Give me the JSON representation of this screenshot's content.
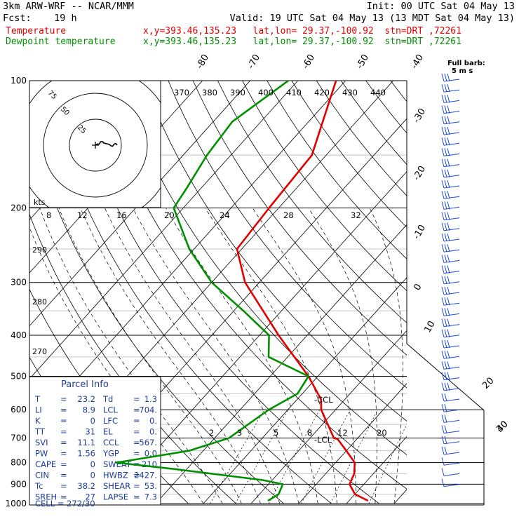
{
  "header": {
    "model": "3km ARW-WRF -- NCAR/MMM",
    "init": "Init: 00 UTC Sat 04 May 13",
    "fcst": "Fcst:    19 h",
    "valid": "Valid: 19 UTC Sat 04 May 13 (13 MDT Sat 04 May 13)"
  },
  "legend": {
    "temp_label": "Temperature",
    "temp_info": "x,y=393.46,135.23   lat,lon= 29.37,-100.92  stn=DRT ,72261",
    "dew_label": "Dewpoint temperature",
    "dew_info": "x,y=393.46,135.23   lat,lon= 29.37,-100.92  stn=DRT ,72261"
  },
  "barb_legend": {
    "title": "Full barb:",
    "value": "5 m s"
  },
  "hodograph": {
    "units": "kts",
    "ring_labels": [
      "75",
      "50",
      "25"
    ]
  },
  "parcel_info": {
    "title": "Parcel Info",
    "rows": [
      {
        "k1": "T",
        "v1": "23.2",
        "k2": "Td",
        "v2": "1.3"
      },
      {
        "k1": "LI",
        "v1": "8.9",
        "k2": "LCL",
        "v2": "704."
      },
      {
        "k1": "K",
        "v1": "0",
        "k2": "LFC",
        "v2": "0."
      },
      {
        "k1": "TT",
        "v1": "31",
        "k2": "EL",
        "v2": "0."
      },
      {
        "k1": "SVI",
        "v1": "11.1",
        "k2": "CCL",
        "v2": "567."
      },
      {
        "k1": "PW",
        "v1": "1.56",
        "k2": "YGP",
        "v2": "0.0"
      },
      {
        "k1": "CAPE",
        "v1": "0",
        "k2": "SWEAT",
        "v2": "210"
      },
      {
        "k1": "CIN",
        "v1": "0",
        "k2": "HWBZ",
        "v2": "2427."
      },
      {
        "k1": "Tc",
        "v1": "38.2",
        "k2": "SHEAR",
        "v2": "53."
      },
      {
        "k1": "SREH",
        "v1": "27",
        "k2": "LAPSE",
        "v2": "7.3"
      }
    ],
    "cell": "CELL = 272/30"
  },
  "chart_data": {
    "type": "line",
    "title": "",
    "y_axis": "pressure (hPa), log scale",
    "ylim": [
      1000,
      100
    ],
    "pressure_labels": [
      "100",
      "200",
      "300",
      "400",
      "500",
      "600",
      "700",
      "800",
      "900",
      "1000"
    ],
    "isotherm_labels": [
      "-80",
      "-70",
      "-60",
      "-50",
      "-40",
      "-30",
      "-20",
      "-10",
      "0",
      "10",
      "20",
      "30",
      "40"
    ],
    "theta_labels": [
      "370",
      "380",
      "390",
      "400",
      "410",
      "420",
      "430",
      "440"
    ],
    "dry_adiabat_labels": [
      "290",
      "280",
      "270"
    ],
    "wind_speed_labels": [
      "8",
      "12",
      "16",
      "20",
      "24",
      "28",
      "32"
    ],
    "mixing_ratio_labels": [
      "2",
      "3",
      "5",
      "8",
      "12",
      "20"
    ],
    "markers": [
      "-CCL",
      "-LCL"
    ],
    "series": [
      {
        "name": "Temperature",
        "color": "#e00000",
        "pressure": [
          100,
          150,
          200,
          250,
          300,
          400,
          500,
          567,
          600,
          700,
          704,
          750,
          800,
          850,
          900,
          950,
          985
        ],
        "temp": [
          -62,
          -53,
          -52,
          -51,
          -43,
          -26,
          -12,
          -5,
          -3,
          5,
          6,
          10,
          14,
          16,
          17,
          20,
          24
        ]
      },
      {
        "name": "Dewpoint temperature",
        "color": "#009000",
        "pressure": [
          100,
          125,
          150,
          180,
          200,
          250,
          300,
          350,
          400,
          450,
          500,
          550,
          600,
          700,
          750,
          800,
          830,
          880,
          900,
          950,
          985
        ],
        "temp": [
          -72,
          -76,
          -75,
          -73,
          -72,
          -61,
          -50,
          -38,
          -28,
          -24,
          -12,
          -11,
          -14,
          -17,
          -23,
          -36,
          -22,
          -2,
          3,
          4,
          3
        ]
      }
    ],
    "hodograph_trace_kts": [
      [
        0,
        0
      ],
      [
        3,
        2
      ],
      [
        7,
        2
      ],
      [
        9,
        6
      ],
      [
        13,
        6
      ],
      [
        14,
        4
      ],
      [
        18,
        3
      ],
      [
        22,
        2
      ],
      [
        25,
        1
      ],
      [
        27,
        -1
      ],
      [
        30,
        -2
      ],
      [
        33,
        2
      ],
      [
        35,
        3
      ],
      [
        37,
        2
      ],
      [
        38,
        0
      ]
    ]
  }
}
